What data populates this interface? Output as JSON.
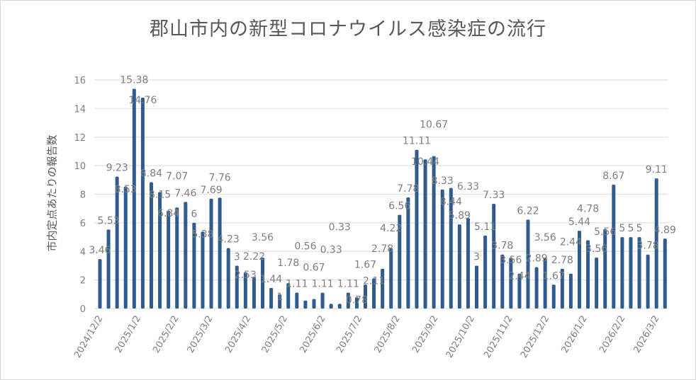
{
  "chart_data": {
    "type": "bar",
    "title": "郡山市内の新型コロナウイルス感染症の流行",
    "xlabel": "",
    "ylabel": "市内定点あたりの報告数",
    "ylim": [
      0,
      16
    ],
    "yticks": [
      0,
      2,
      4,
      6,
      8,
      10,
      12,
      14,
      16
    ],
    "grid": true,
    "legend": "none",
    "bar_color": "#2f5b8f",
    "x_start": "2024/12/2",
    "x_interval": "weekly",
    "xtick_labels": [
      "2024/12/2",
      "2025/1/2",
      "2025/2/2",
      "2025/3/2",
      "2025/4/2",
      "2025/5/2",
      "2025/6/2",
      "2025/7/2",
      "2025/8/2",
      "2025/9/2",
      "2025/10/2",
      "2025/11/2",
      "2025/12/2",
      "2026/1/2",
      "2026/2/2",
      "2026/3/2"
    ],
    "values": [
      3.46,
      5.53,
      9.23,
      8.53,
      15.38,
      14.76,
      8.84,
      8.15,
      6.84,
      7.07,
      7.46,
      6,
      5.38,
      7.69,
      7.76,
      4.23,
      3,
      2.53,
      2.22,
      3.56,
      1.44,
      1,
      1.78,
      1.11,
      0.56,
      0.67,
      1.11,
      0.33,
      0.33,
      1.11,
      0.78,
      1.67,
      2.11,
      2.78,
      4.22,
      6.56,
      7.78,
      11.11,
      10.44,
      10.67,
      8.33,
      8.44,
      5.89,
      6.33,
      3,
      5.11,
      7.33,
      3.78,
      3.56,
      2.44,
      6.22,
      2.89,
      3.56,
      1.67,
      2.78,
      2.44,
      5.44,
      4.78,
      3.56,
      5.56,
      8.67,
      5,
      5,
      5,
      3.78,
      9.11,
      4.89
    ]
  }
}
